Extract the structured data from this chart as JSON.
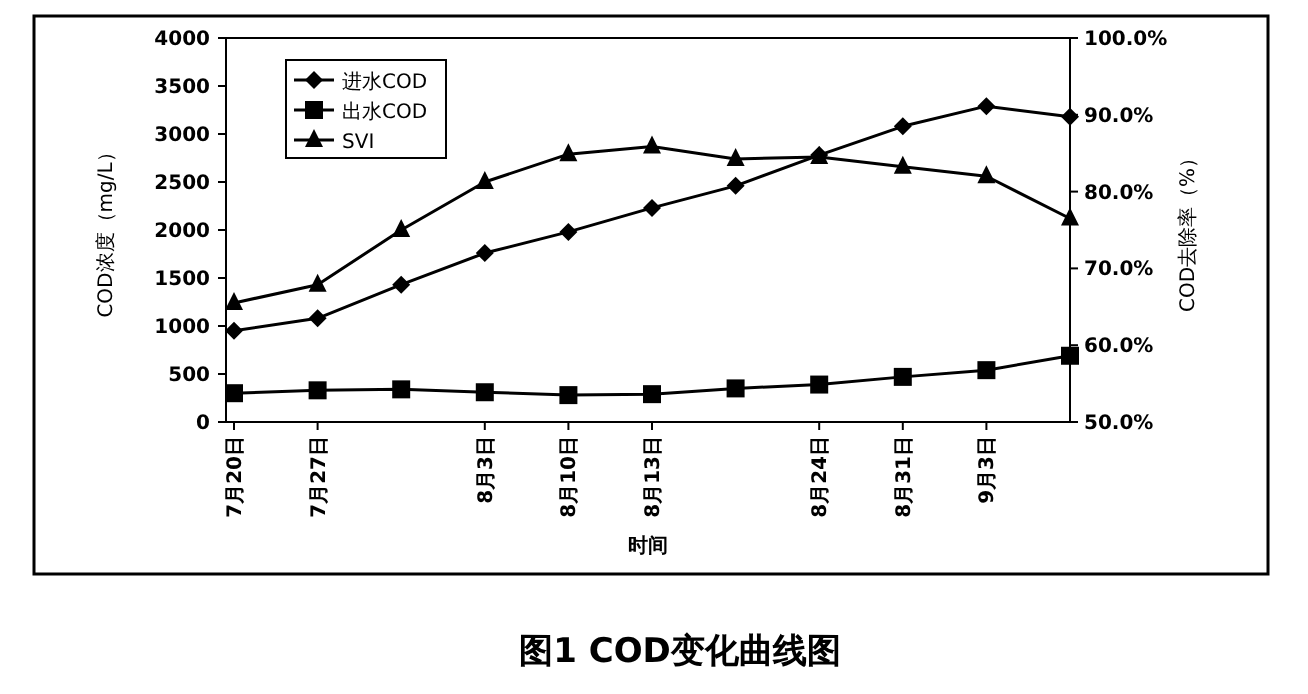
{
  "chart_data": {
    "type": "line",
    "title": "图1 COD变化曲线图",
    "xlabel": "时间",
    "ylabel": "COD浓度（mg/L）",
    "y2label": "COD去除率（%）",
    "categories": [
      "7月20日",
      "7月27日",
      null,
      "8月3日",
      "8月10日",
      "8月13日",
      null,
      "8月24日",
      "8月31日",
      "9月3日",
      null
    ],
    "ylim": [
      0,
      4000
    ],
    "yticks": [
      0,
      500,
      1000,
      1500,
      2000,
      2500,
      3000,
      3500,
      4000
    ],
    "y2lim": [
      50,
      100
    ],
    "y2ticks": [
      {
        "value": 50,
        "label": "50.0%"
      },
      {
        "value": 60,
        "label": "60.0%"
      },
      {
        "value": 70,
        "label": "70.0%"
      },
      {
        "value": 80,
        "label": "80.0%"
      },
      {
        "value": 90,
        "label": "90.0%"
      },
      {
        "value": 100,
        "label": "100.0%"
      }
    ],
    "legend": "top left",
    "series": [
      {
        "name": "进水COD",
        "color": "#000000",
        "marker": "diamond",
        "values": [
          950,
          1080,
          1430,
          1760,
          1980,
          2230,
          2460,
          2780,
          3080,
          3290,
          3180
        ]
      },
      {
        "name": "出水COD",
        "color": "#000000",
        "marker": "square",
        "values": [
          300,
          330,
          340,
          310,
          280,
          290,
          350,
          390,
          470,
          540,
          690
        ]
      },
      {
        "name": "SVI",
        "color": "#000000",
        "marker": "triangle",
        "values": [
          1240,
          1430,
          2000,
          2500,
          2790,
          2870,
          2740,
          2760,
          2660,
          2560,
          2120
        ]
      }
    ]
  }
}
